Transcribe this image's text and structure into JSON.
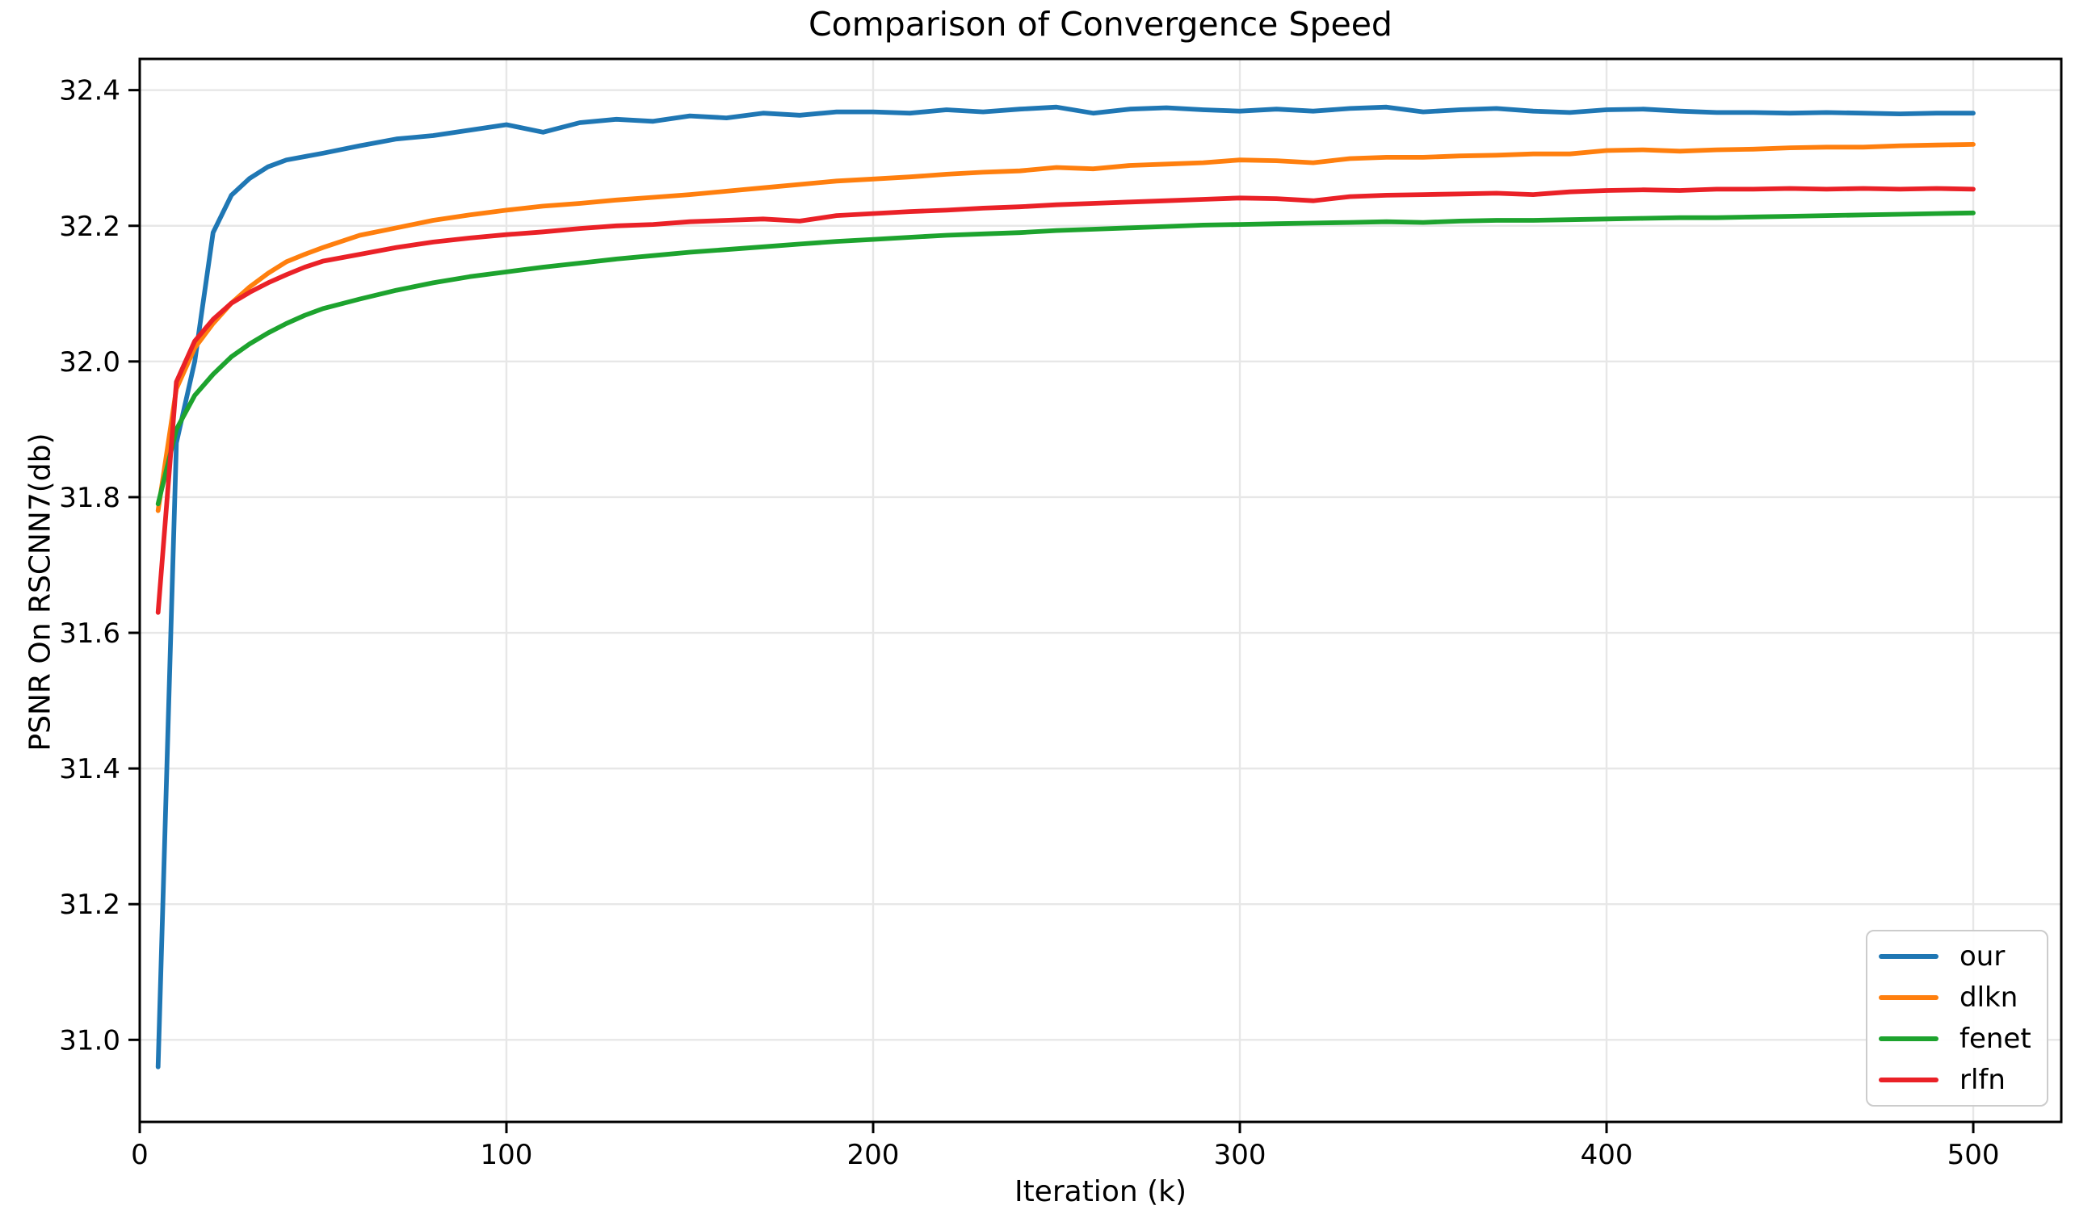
{
  "chart_data": {
    "type": "line",
    "title": "Comparison of Convergence Speed",
    "xlabel": "Iteration (k)",
    "ylabel": "PSNR On RSCNN7(db)",
    "xlim": [
      0,
      524
    ],
    "ylim": [
      30.879,
      32.446
    ],
    "xticks": [
      0,
      100,
      200,
      300,
      400,
      500
    ],
    "yticks": [
      31.0,
      31.2,
      31.4,
      31.6,
      31.8,
      32.0,
      32.2,
      32.4
    ],
    "grid": true,
    "legend_position": "lower right",
    "x": [
      5,
      10,
      15,
      20,
      25,
      30,
      35,
      40,
      45,
      50,
      60,
      70,
      80,
      90,
      100,
      110,
      120,
      130,
      140,
      150,
      160,
      170,
      180,
      190,
      200,
      210,
      220,
      230,
      240,
      250,
      260,
      270,
      280,
      290,
      300,
      310,
      320,
      330,
      340,
      350,
      360,
      370,
      380,
      390,
      400,
      410,
      420,
      430,
      440,
      450,
      460,
      470,
      480,
      490,
      500
    ],
    "series": [
      {
        "name": "our",
        "color": "#1f77b4",
        "values": [
          30.96,
          31.88,
          32.0,
          32.19,
          32.245,
          32.27,
          32.287,
          32.297,
          32.302,
          32.307,
          32.318,
          32.328,
          32.333,
          32.341,
          32.349,
          32.338,
          32.352,
          32.357,
          32.354,
          32.362,
          32.359,
          32.366,
          32.363,
          32.368,
          32.368,
          32.366,
          32.371,
          32.368,
          32.372,
          32.375,
          32.366,
          32.372,
          32.374,
          32.371,
          32.369,
          32.372,
          32.369,
          32.373,
          32.375,
          32.368,
          32.371,
          32.373,
          32.369,
          32.367,
          32.371,
          32.372,
          32.369,
          32.367,
          32.367,
          32.366,
          32.367,
          32.366,
          32.365,
          32.366,
          32.366
        ]
      },
      {
        "name": "dlkn",
        "color": "#ff7f0e",
        "values": [
          31.78,
          31.96,
          32.02,
          32.056,
          32.086,
          32.11,
          32.13,
          32.147,
          32.158,
          32.168,
          32.186,
          32.197,
          32.208,
          32.216,
          32.223,
          32.229,
          32.233,
          32.238,
          32.242,
          32.246,
          32.251,
          32.256,
          32.261,
          32.266,
          32.269,
          32.272,
          32.276,
          32.279,
          32.281,
          32.286,
          32.284,
          32.289,
          32.291,
          32.293,
          32.297,
          32.296,
          32.293,
          32.299,
          32.301,
          32.301,
          32.303,
          32.304,
          32.306,
          32.306,
          32.311,
          32.312,
          32.31,
          32.312,
          32.313,
          32.315,
          32.316,
          32.316,
          32.318,
          32.319,
          32.32
        ]
      },
      {
        "name": "fenet",
        "color": "#1da32e",
        "values": [
          31.79,
          31.9,
          31.95,
          31.981,
          32.007,
          32.026,
          32.042,
          32.056,
          32.068,
          32.078,
          32.092,
          32.105,
          32.116,
          32.125,
          32.132,
          32.139,
          32.145,
          32.151,
          32.156,
          32.161,
          32.165,
          32.169,
          32.173,
          32.177,
          32.18,
          32.183,
          32.186,
          32.188,
          32.19,
          32.193,
          32.195,
          32.197,
          32.199,
          32.201,
          32.202,
          32.203,
          32.204,
          32.205,
          32.206,
          32.205,
          32.207,
          32.208,
          32.208,
          32.209,
          32.21,
          32.211,
          32.212,
          32.212,
          32.213,
          32.214,
          32.215,
          32.216,
          32.217,
          32.218,
          32.219
        ]
      },
      {
        "name": "rlfn",
        "color": "#ea2127",
        "values": [
          31.63,
          31.97,
          32.03,
          32.062,
          32.086,
          32.102,
          32.116,
          32.128,
          32.139,
          32.148,
          32.158,
          32.168,
          32.176,
          32.182,
          32.187,
          32.191,
          32.196,
          32.2,
          32.202,
          32.206,
          32.208,
          32.21,
          32.207,
          32.215,
          32.218,
          32.221,
          32.223,
          32.226,
          32.228,
          32.231,
          32.233,
          32.235,
          32.237,
          32.239,
          32.241,
          32.24,
          32.237,
          32.243,
          32.245,
          32.246,
          32.247,
          32.248,
          32.246,
          32.25,
          32.252,
          32.253,
          32.252,
          32.254,
          32.254,
          32.255,
          32.254,
          32.255,
          32.254,
          32.255,
          32.254
        ]
      }
    ]
  }
}
